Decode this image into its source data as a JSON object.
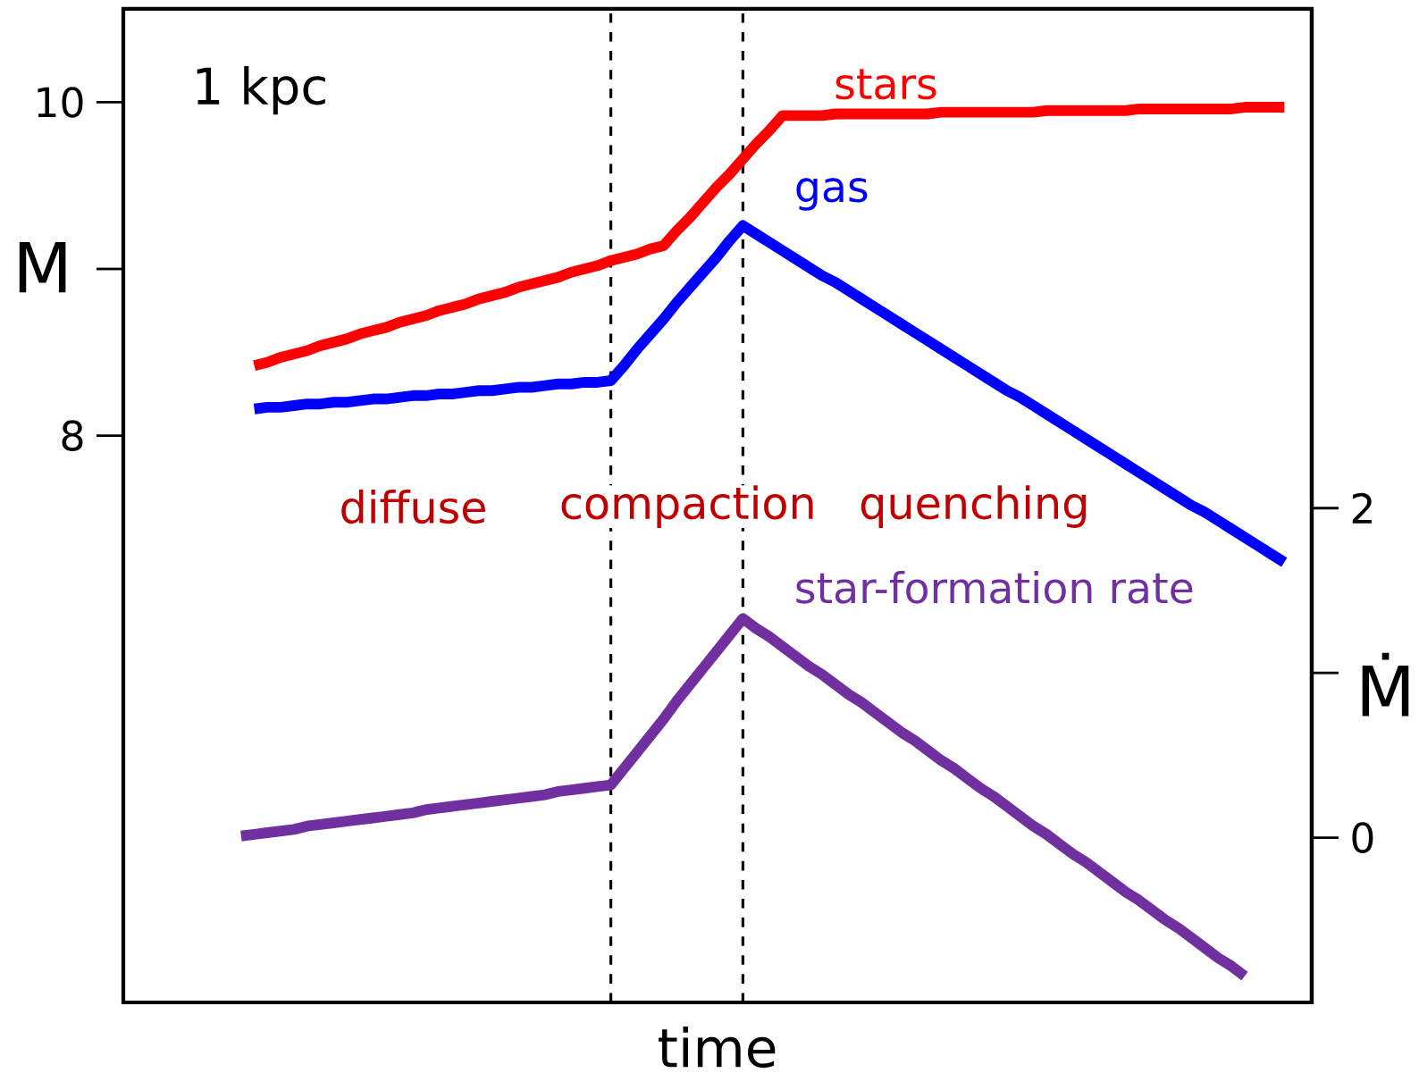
{
  "chart_data": {
    "type": "line",
    "xlabel": "time",
    "ylabel": "M",
    "y2label": "Ṁ",
    "categories": [
      null,
      null,
      null,
      null,
      null,
      null,
      null,
      null,
      null,
      null,
      null,
      null,
      null,
      null,
      null,
      null,
      null,
      null,
      null,
      null,
      null,
      null,
      null,
      null,
      null,
      null,
      null,
      null,
      null,
      null,
      null,
      null,
      null,
      null,
      null,
      null,
      null,
      null,
      null,
      null,
      null,
      null,
      null,
      null,
      null,
      null,
      null,
      null,
      null,
      null,
      null,
      null,
      null,
      null,
      null,
      null,
      null,
      null,
      null,
      null,
      null,
      null,
      null,
      null,
      null,
      null,
      null,
      null,
      null,
      null,
      null,
      null,
      null,
      null,
      null,
      null,
      null,
      null,
      null,
      null
    ],
    "ylim": [
      4.6,
      10.56
    ],
    "yticks": [
      8,
      10
    ],
    "y2lim": [
      -1,
      5.03
    ],
    "y2ticks": [
      0,
      2
    ],
    "tick_labels": "y",
    "grid": false,
    "legend": false,
    "marker": "none",
    "line_style": "solid",
    "series": [
      {
        "name": "stars",
        "color": "#ff0000",
        "values": [
          null,
          8.42,
          8.44,
          8.47,
          8.49,
          8.51,
          8.54,
          8.56,
          8.58,
          8.61,
          8.63,
          8.65,
          8.68,
          8.7,
          8.72,
          8.75,
          8.77,
          8.79,
          8.82,
          8.84,
          8.86,
          8.89,
          8.91,
          8.93,
          8.95,
          8.98,
          9.0,
          9.02,
          9.05,
          9.07,
          9.09,
          9.12,
          9.14,
          9.23,
          9.31,
          9.4,
          9.49,
          9.57,
          9.66,
          9.75,
          9.83,
          9.92,
          9.92,
          9.92,
          9.92,
          9.93,
          9.93,
          9.93,
          9.93,
          9.93,
          9.93,
          9.93,
          9.93,
          9.94,
          9.94,
          9.94,
          9.94,
          9.94,
          9.94,
          9.94,
          9.94,
          9.95,
          9.95,
          9.95,
          9.95,
          9.95,
          9.95,
          9.95,
          9.96,
          9.96,
          9.96,
          9.96,
          9.96,
          9.96,
          9.96,
          9.96,
          9.97,
          9.97,
          9.97,
          9.97
        ]
      },
      {
        "name": "gas",
        "color": "#0000ff",
        "values": [
          null,
          8.16,
          8.17,
          8.17,
          8.18,
          8.19,
          8.19,
          8.2,
          8.2,
          8.21,
          8.22,
          8.22,
          8.23,
          8.24,
          8.24,
          8.25,
          8.25,
          8.26,
          8.27,
          8.27,
          8.28,
          8.29,
          8.29,
          8.3,
          8.31,
          8.31,
          8.32,
          8.32,
          8.33,
          8.42,
          8.52,
          8.61,
          8.7,
          8.8,
          8.89,
          8.98,
          9.07,
          9.17,
          9.26,
          9.21,
          9.16,
          9.11,
          9.06,
          9.01,
          8.96,
          8.92,
          8.87,
          8.82,
          8.77,
          8.72,
          8.67,
          8.62,
          8.57,
          8.52,
          8.47,
          8.42,
          8.37,
          8.32,
          8.27,
          8.23,
          8.18,
          8.13,
          8.08,
          8.03,
          7.98,
          7.93,
          7.88,
          7.83,
          7.78,
          7.73,
          7.68,
          7.63,
          7.58,
          7.54,
          7.49,
          7.44,
          7.39,
          7.34,
          7.29,
          7.24
        ]
      },
      {
        "name": "star-formation rate",
        "color": "#7030a0",
        "axis": "y2",
        "values": [
          0.01,
          0.02,
          0.03,
          0.04,
          0.05,
          0.07,
          0.08,
          0.09,
          0.1,
          0.11,
          0.12,
          0.13,
          0.14,
          0.15,
          0.17,
          0.18,
          0.19,
          0.2,
          0.21,
          0.22,
          0.23,
          0.24,
          0.25,
          0.26,
          0.28,
          0.29,
          0.3,
          0.31,
          0.32,
          0.42,
          0.52,
          0.62,
          0.72,
          0.83,
          0.93,
          1.03,
          1.13,
          1.23,
          1.33,
          1.27,
          1.22,
          1.16,
          1.1,
          1.04,
          0.99,
          0.93,
          0.87,
          0.82,
          0.76,
          0.7,
          0.64,
          0.59,
          0.53,
          0.47,
          0.42,
          0.36,
          0.3,
          0.25,
          0.19,
          0.13,
          0.07,
          0.02,
          -0.04,
          -0.1,
          -0.15,
          -0.21,
          -0.27,
          -0.33,
          -0.38,
          -0.44,
          -0.5,
          -0.55,
          -0.61,
          -0.67,
          -0.73,
          -0.78,
          -0.84,
          null,
          null,
          null
        ]
      }
    ],
    "annotations": [
      "1 kpc",
      "diffuse",
      "compaction",
      "quenching"
    ]
  }
}
